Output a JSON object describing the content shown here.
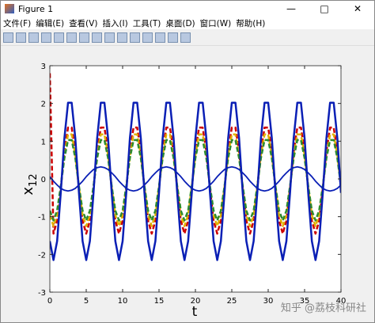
{
  "window": {
    "title": "Figure 1"
  },
  "menu": [
    "文件(F)",
    "编辑(E)",
    "查看(V)",
    "插入(I)",
    "工具(T)",
    "桌面(D)",
    "窗口(W)",
    "帮助(H)"
  ],
  "watermark": "知乎 @荔枝科研社",
  "chart_data": {
    "type": "line",
    "xlabel": "t",
    "ylabel": {
      "base": "x",
      "sub": "12"
    },
    "xlim": [
      0,
      40
    ],
    "ylim": [
      -3,
      3
    ],
    "xticks": [
      0,
      5,
      10,
      15,
      20,
      25,
      30,
      35,
      40
    ],
    "yticks": [
      -3,
      -2,
      -1,
      0,
      1,
      2,
      3
    ],
    "x": [
      0,
      0.5,
      1,
      1.5,
      2,
      2.5,
      3,
      3.5,
      4,
      4.5,
      5,
      5.5,
      6,
      6.5,
      7,
      7.5,
      8,
      8.5,
      9,
      9.5,
      10,
      10.5,
      11,
      11.5,
      12,
      12.5,
      13,
      13.5,
      14,
      14.5,
      15,
      15.5,
      16,
      16.5,
      17,
      17.5,
      18,
      18.5,
      19,
      19.5,
      20,
      20.5,
      21,
      21.5,
      22,
      22.5,
      23,
      23.5,
      24,
      24.5,
      25,
      25.5,
      26,
      26.5,
      27,
      27.5,
      28,
      28.5,
      29,
      29.5,
      30,
      30.5,
      31,
      31.5,
      32,
      32.5,
      33,
      33.5,
      34,
      34.5,
      35,
      35.5,
      36,
      36.5,
      37,
      37.5,
      38,
      38.5,
      39,
      39.5,
      40
    ],
    "series": [
      {
        "color": "#cc0000",
        "linestyle": "dashed",
        "width": 2.5,
        "values": [
          2.8,
          -1.45,
          -1.11,
          -0.25,
          0.73,
          1.36,
          1.36,
          0.73,
          -0.25,
          -1.11,
          -1.45,
          -1.11,
          -0.25,
          0.73,
          1.36,
          1.36,
          0.73,
          -0.25,
          -1.11,
          -1.45,
          -1.11,
          -0.25,
          0.73,
          1.36,
          1.36,
          0.73,
          -0.25,
          -1.11,
          -1.45,
          -1.11,
          -0.25,
          0.73,
          1.36,
          1.36,
          0.73,
          -0.25,
          -1.11,
          -1.45,
          -1.11,
          -0.25,
          0.73,
          1.36,
          1.36,
          0.73,
          -0.25,
          -1.11,
          -1.45,
          -1.11,
          -0.25,
          0.73,
          1.36,
          1.36,
          0.73,
          -0.25,
          -1.11,
          -1.45,
          -1.11,
          -0.25,
          0.73,
          1.36,
          1.36,
          0.73,
          -0.25,
          -1.11,
          -1.45,
          -1.11,
          -0.25,
          0.73,
          1.36,
          1.36,
          0.73,
          -0.25,
          -1.11,
          -1.45,
          -1.11,
          -0.25,
          0.73,
          1.36,
          1.36,
          0.73,
          -0.25
        ]
      },
      {
        "color": "#e0b000",
        "linestyle": "dashed",
        "width": 2.5,
        "values": [
          -0.96,
          -1.25,
          -0.96,
          -0.22,
          0.63,
          1.18,
          1.18,
          0.63,
          -0.22,
          -0.96,
          -1.25,
          -0.96,
          -0.22,
          0.63,
          1.18,
          1.18,
          0.63,
          -0.22,
          -0.96,
          -1.25,
          -0.96,
          -0.22,
          0.63,
          1.18,
          1.18,
          0.63,
          -0.22,
          -0.96,
          -1.25,
          -0.96,
          -0.22,
          0.63,
          1.18,
          1.18,
          0.63,
          -0.22,
          -0.96,
          -1.25,
          -0.96,
          -0.22,
          0.63,
          1.18,
          1.18,
          0.63,
          -0.22,
          -0.96,
          -1.25,
          -0.96,
          -0.22,
          0.63,
          1.18,
          1.18,
          0.63,
          -0.22,
          -0.96,
          -1.25,
          -0.96,
          -0.22,
          0.63,
          1.18,
          1.18,
          0.63,
          -0.22,
          -0.96,
          -1.25,
          -0.96,
          -0.22,
          0.63,
          1.18,
          1.18,
          0.63,
          -0.22,
          -0.96,
          -1.25,
          -0.96,
          -0.22,
          0.63,
          1.18,
          1.18,
          0.63,
          -0.22
        ]
      },
      {
        "color": "#2e8b2e",
        "linestyle": "dashed",
        "width": 2.5,
        "values": [
          -0.84,
          -1.1,
          -0.84,
          -0.19,
          0.55,
          1.03,
          1.03,
          0.55,
          -0.19,
          -0.84,
          -1.1,
          -0.84,
          -0.19,
          0.55,
          1.03,
          1.03,
          0.55,
          -0.19,
          -0.84,
          -1.1,
          -0.84,
          -0.19,
          0.55,
          1.03,
          1.03,
          0.55,
          -0.19,
          -0.84,
          -1.1,
          -0.84,
          -0.19,
          0.55,
          1.03,
          1.03,
          0.55,
          -0.19,
          -0.84,
          -1.1,
          -0.84,
          -0.19,
          0.55,
          1.03,
          1.03,
          0.55,
          -0.19,
          -0.84,
          -1.1,
          -0.84,
          -0.19,
          0.55,
          1.03,
          1.03,
          0.55,
          -0.19,
          -0.84,
          -1.1,
          -0.84,
          -0.19,
          0.55,
          1.03,
          1.03,
          0.55,
          -0.19,
          -0.84,
          -1.1,
          -0.84,
          -0.19,
          0.55,
          1.03,
          1.03,
          0.55,
          -0.19,
          -0.84,
          -1.1,
          -0.84,
          -0.19,
          0.55,
          1.03,
          1.03,
          0.55,
          -0.19
        ]
      },
      {
        "color": "#0a1fb5",
        "linestyle": "solid",
        "width": 2.5,
        "values": [
          -1.65,
          -2.15,
          -1.65,
          -0.37,
          1.08,
          2.02,
          2.02,
          1.08,
          -0.37,
          -1.65,
          -2.15,
          -1.65,
          -0.37,
          1.08,
          2.02,
          2.02,
          1.08,
          -0.37,
          -1.65,
          -2.15,
          -1.65,
          -0.37,
          1.08,
          2.02,
          2.02,
          1.08,
          -0.37,
          -1.65,
          -2.15,
          -1.65,
          -0.37,
          1.08,
          2.02,
          2.02,
          1.08,
          -0.37,
          -1.65,
          -2.15,
          -1.65,
          -0.37,
          1.08,
          2.02,
          2.02,
          1.08,
          -0.37,
          -1.65,
          -2.15,
          -1.65,
          -0.37,
          1.08,
          2.02,
          2.02,
          1.08,
          -0.37,
          -1.65,
          -2.15,
          -1.65,
          -0.37,
          1.08,
          2.02,
          2.02,
          1.08,
          -0.37,
          -1.65,
          -2.15,
          -1.65,
          -0.37,
          1.08,
          2.02,
          2.02,
          1.08,
          -0.37,
          -1.65,
          -2.15,
          -1.65,
          -0.37,
          1.08,
          2.02,
          2.02,
          1.08,
          -0.37
        ]
      },
      {
        "color": "#0a1fb5",
        "linestyle": "solid",
        "width": 1.8,
        "values": [
          0.06,
          -0.06,
          -0.16,
          -0.25,
          -0.3,
          -0.32,
          -0.3,
          -0.25,
          -0.16,
          -0.06,
          0.06,
          0.16,
          0.25,
          0.3,
          0.32,
          0.3,
          0.25,
          0.16,
          0.06,
          -0.06,
          -0.16,
          -0.25,
          -0.3,
          -0.32,
          -0.3,
          -0.25,
          -0.16,
          -0.06,
          0.06,
          0.16,
          0.25,
          0.3,
          0.32,
          0.3,
          0.25,
          0.16,
          0.06,
          -0.06,
          -0.16,
          -0.25,
          -0.3,
          -0.32,
          -0.3,
          -0.25,
          -0.16,
          -0.06,
          0.06,
          0.16,
          0.25,
          0.3,
          0.32,
          0.3,
          0.25,
          0.16,
          0.06,
          -0.06,
          -0.16,
          -0.25,
          -0.3,
          -0.32,
          -0.3,
          -0.25,
          -0.16,
          -0.06,
          0.06,
          0.16,
          0.25,
          0.3,
          0.32,
          0.3,
          0.25,
          0.16,
          0.06,
          -0.06,
          -0.16,
          -0.25,
          -0.3,
          -0.32,
          -0.3,
          -0.25,
          -0.16
        ]
      }
    ]
  }
}
